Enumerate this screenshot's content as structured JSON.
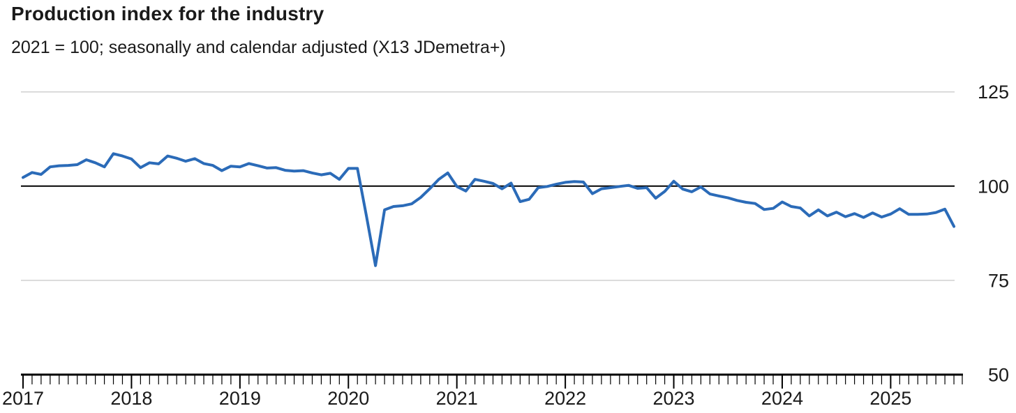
{
  "header": {
    "title": "Production index for the industry",
    "subtitle": "2021 = 100; seasonally and calendar adjusted (X13 JDemetra+)"
  },
  "chart_data": {
    "type": "line",
    "title": "Production index for the industry",
    "subtitle": "2021 = 100; seasonally and calendar adjusted (X13 JDemetra+)",
    "x_start": "2017-01",
    "x_end": "2025-08",
    "frequency": "monthly",
    "x_tick_labels": [
      "2017",
      "2018",
      "2019",
      "2020",
      "2021",
      "2022",
      "2023",
      "2024",
      "2025"
    ],
    "y_ticks": [
      125,
      100,
      75,
      50
    ],
    "ylim": [
      50,
      125
    ],
    "y_gridlines": [
      125,
      75
    ],
    "reference_line": 100,
    "legend_position": "none",
    "grid": "horizontal-only",
    "series": [
      {
        "name": "Production index (2021 = 100)",
        "color": "#2b6bb8",
        "values": [
          102.3,
          103.6,
          103.1,
          105.1,
          105.4,
          105.5,
          105.7,
          107.0,
          106.2,
          105.1,
          108.6,
          108.0,
          107.2,
          104.9,
          106.2,
          105.9,
          108.0,
          107.4,
          106.6,
          107.3,
          106.0,
          105.5,
          104.1,
          105.3,
          105.1,
          106.0,
          105.4,
          104.8,
          104.9,
          104.2,
          104.0,
          104.1,
          103.5,
          103.0,
          103.4,
          101.8,
          104.7,
          104.7,
          92.0,
          78.9,
          93.7,
          94.6,
          94.8,
          95.3,
          97.0,
          99.3,
          101.8,
          103.5,
          99.9,
          98.7,
          101.8,
          101.3,
          100.7,
          99.3,
          100.8,
          95.9,
          96.5,
          99.6,
          99.9,
          100.5,
          101.0,
          101.2,
          101.1,
          98.0,
          99.3,
          99.6,
          99.9,
          100.2,
          99.4,
          99.6,
          96.8,
          98.6,
          101.3,
          99.2,
          98.5,
          99.8,
          97.9,
          97.4,
          96.9,
          96.2,
          95.7,
          95.4,
          93.8,
          94.1,
          95.8,
          94.6,
          94.2,
          92.1,
          93.7,
          92.1,
          93.1,
          91.9,
          92.7,
          91.7,
          92.9,
          91.8,
          92.6,
          94.0,
          92.5,
          92.5,
          92.6,
          93.0,
          93.9,
          89.3
        ]
      }
    ],
    "style": {
      "line_color": "#2b6bb8",
      "line_width": 4,
      "grid_color": "#d0d0d0",
      "reference_line_color": "#000000",
      "axis_color": "#000000",
      "text_color": "#1a1a1a",
      "background": "#ffffff"
    }
  }
}
